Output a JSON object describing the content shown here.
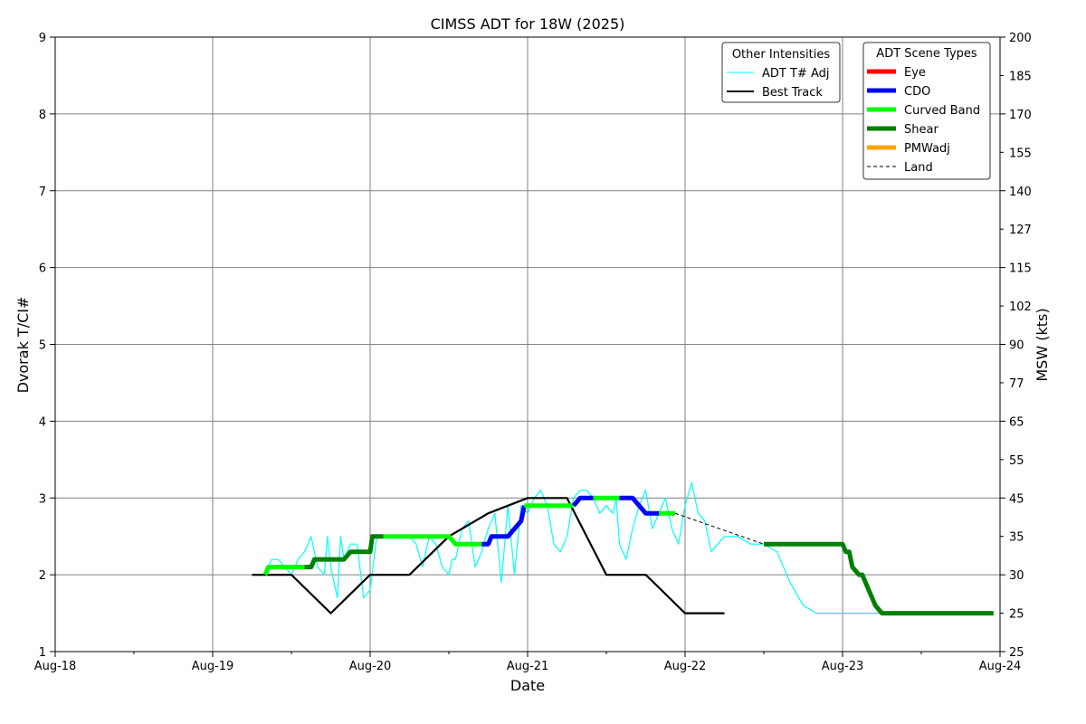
{
  "chart_data": {
    "type": "line",
    "title": "CIMSS ADT for 18W (2025)",
    "xlabel": "Date",
    "ylabel": "Dvorak T/CI#",
    "y2label": "MSW (kts)",
    "x_range": [
      "2025-08-18",
      "2025-08-24"
    ],
    "x_ticks": [
      "Aug-18",
      "Aug-19",
      "Aug-20",
      "Aug-21",
      "Aug-22",
      "Aug-23",
      "Aug-24"
    ],
    "ylim": [
      1,
      9
    ],
    "y_ticks": [
      "1",
      "2",
      "3",
      "4",
      "5",
      "6",
      "7",
      "8",
      "9"
    ],
    "y2_ticks": [
      "25",
      "30",
      "45",
      "65",
      "90",
      "115",
      "140",
      "170",
      "200"
    ],
    "y2_minor_ticks": [
      "25",
      "35",
      "55",
      "77",
      "102",
      "127",
      "155",
      "185"
    ],
    "grid": true,
    "legends": {
      "other": {
        "title": "Other Intensities",
        "placement": "top-right",
        "entries": [
          {
            "label": "ADT T# Adj",
            "color": "#00ffff",
            "style": "thin"
          },
          {
            "label": "Best Track",
            "color": "#000000",
            "style": "medium"
          }
        ]
      },
      "scene": {
        "title": "ADT Scene Types",
        "placement": "top-right",
        "entries": [
          {
            "label": "Eye",
            "color": "#ff0000",
            "style": "thick"
          },
          {
            "label": "CDO",
            "color": "#0000ff",
            "style": "thick"
          },
          {
            "label": "Curved Band",
            "color": "#00ff00",
            "style": "thick"
          },
          {
            "label": "Shear",
            "color": "#008000",
            "style": "thick"
          },
          {
            "label": "PMWadj",
            "color": "#ffa500",
            "style": "thick"
          },
          {
            "label": "Land",
            "color": "#000000",
            "style": "dashed"
          }
        ]
      }
    },
    "series": [
      {
        "name": "ADT T# Adj",
        "color": "#00ffff",
        "points": [
          [
            "2025-08-19 08:00",
            2.0
          ],
          [
            "2025-08-19 09:00",
            2.2
          ],
          [
            "2025-08-19 10:00",
            2.2
          ],
          [
            "2025-08-19 11:00",
            2.1
          ],
          [
            "2025-08-19 12:00",
            2.0
          ],
          [
            "2025-08-19 13:00",
            2.2
          ],
          [
            "2025-08-19 14:00",
            2.3
          ],
          [
            "2025-08-19 15:00",
            2.5
          ],
          [
            "2025-08-19 16:00",
            2.1
          ],
          [
            "2025-08-19 17:00",
            2.0
          ],
          [
            "2025-08-19 17:30",
            2.5
          ],
          [
            "2025-08-19 18:00",
            2.1
          ],
          [
            "2025-08-19 19:00",
            1.7
          ],
          [
            "2025-08-19 19:30",
            2.5
          ],
          [
            "2025-08-19 20:00",
            2.2
          ],
          [
            "2025-08-19 21:00",
            2.4
          ],
          [
            "2025-08-19 22:00",
            2.4
          ],
          [
            "2025-08-19 23:00",
            1.7
          ],
          [
            "2025-08-20 00:00",
            1.8
          ],
          [
            "2025-08-20 01:00",
            2.5
          ],
          [
            "2025-08-20 03:00",
            2.5
          ],
          [
            "2025-08-20 05:00",
            2.5
          ],
          [
            "2025-08-20 06:00",
            2.5
          ],
          [
            "2025-08-20 07:00",
            2.4
          ],
          [
            "2025-08-20 08:00",
            2.1
          ],
          [
            "2025-08-20 09:00",
            2.5
          ],
          [
            "2025-08-20 10:00",
            2.4
          ],
          [
            "2025-08-20 11:00",
            2.1
          ],
          [
            "2025-08-20 12:00",
            2.0
          ],
          [
            "2025-08-20 12:30",
            2.2
          ],
          [
            "2025-08-20 13:00",
            2.2
          ],
          [
            "2025-08-20 14:00",
            2.6
          ],
          [
            "2025-08-20 15:00",
            2.7
          ],
          [
            "2025-08-20 16:00",
            2.1
          ],
          [
            "2025-08-20 17:00",
            2.3
          ],
          [
            "2025-08-20 18:00",
            2.6
          ],
          [
            "2025-08-20 19:00",
            2.8
          ],
          [
            "2025-08-20 20:00",
            1.9
          ],
          [
            "2025-08-20 21:00",
            2.9
          ],
          [
            "2025-08-20 22:00",
            2.0
          ],
          [
            "2025-08-20 23:00",
            2.9
          ],
          [
            "2025-08-21 00:00",
            2.8
          ],
          [
            "2025-08-21 01:00",
            3.0
          ],
          [
            "2025-08-21 02:00",
            3.1
          ],
          [
            "2025-08-21 03:00",
            2.9
          ],
          [
            "2025-08-21 04:00",
            2.4
          ],
          [
            "2025-08-21 05:00",
            2.3
          ],
          [
            "2025-08-21 06:00",
            2.5
          ],
          [
            "2025-08-21 07:00",
            3.0
          ],
          [
            "2025-08-21 08:00",
            3.1
          ],
          [
            "2025-08-21 09:00",
            3.1
          ],
          [
            "2025-08-21 10:00",
            3.0
          ],
          [
            "2025-08-21 11:00",
            2.8
          ],
          [
            "2025-08-21 12:00",
            2.9
          ],
          [
            "2025-08-21 13:00",
            2.8
          ],
          [
            "2025-08-21 13:30",
            3.0
          ],
          [
            "2025-08-21 14:00",
            2.4
          ],
          [
            "2025-08-21 15:00",
            2.2
          ],
          [
            "2025-08-21 16:00",
            2.6
          ],
          [
            "2025-08-21 17:00",
            2.9
          ],
          [
            "2025-08-21 18:00",
            3.1
          ],
          [
            "2025-08-21 19:00",
            2.6
          ],
          [
            "2025-08-21 20:00",
            2.8
          ],
          [
            "2025-08-21 21:00",
            3.0
          ],
          [
            "2025-08-21 22:00",
            2.6
          ],
          [
            "2025-08-21 23:00",
            2.4
          ],
          [
            "2025-08-22 00:00",
            2.9
          ],
          [
            "2025-08-22 01:00",
            3.2
          ],
          [
            "2025-08-22 02:00",
            2.8
          ],
          [
            "2025-08-22 03:00",
            2.7
          ],
          [
            "2025-08-22 04:00",
            2.3
          ],
          [
            "2025-08-22 06:00",
            2.5
          ],
          [
            "2025-08-22 08:00",
            2.5
          ],
          [
            "2025-08-22 10:00",
            2.4
          ],
          [
            "2025-08-22 12:00",
            2.4
          ],
          [
            "2025-08-22 14:00",
            2.3
          ],
          [
            "2025-08-22 16:00",
            1.9
          ],
          [
            "2025-08-22 18:00",
            1.6
          ],
          [
            "2025-08-22 20:00",
            1.5
          ],
          [
            "2025-08-22 22:00",
            1.5
          ],
          [
            "2025-08-23 00:00",
            1.5
          ],
          [
            "2025-08-23 02:00",
            1.5
          ],
          [
            "2025-08-23 04:00",
            1.5
          ],
          [
            "2025-08-23 06:00",
            1.5
          ]
        ]
      },
      {
        "name": "Best Track",
        "color": "#000000",
        "points": [
          [
            "2025-08-19 06:00",
            2.0
          ],
          [
            "2025-08-19 12:00",
            2.0
          ],
          [
            "2025-08-19 18:00",
            1.5
          ],
          [
            "2025-08-20 00:00",
            2.0
          ],
          [
            "2025-08-20 06:00",
            2.0
          ],
          [
            "2025-08-20 12:00",
            2.5
          ],
          [
            "2025-08-20 18:00",
            2.8
          ],
          [
            "2025-08-21 00:00",
            3.0
          ],
          [
            "2025-08-21 06:00",
            3.0
          ],
          [
            "2025-08-21 12:00",
            2.0
          ],
          [
            "2025-08-21 18:00",
            2.0
          ],
          [
            "2025-08-22 00:00",
            1.5
          ],
          [
            "2025-08-22 06:00",
            1.5
          ]
        ]
      }
    ],
    "scene_segments": [
      {
        "scene": "Curved Band",
        "color": "#00ff00",
        "points": [
          [
            "2025-08-19 08:00",
            2.0
          ],
          [
            "2025-08-19 08:30",
            2.1
          ],
          [
            "2025-08-19 14:00",
            2.1
          ]
        ]
      },
      {
        "scene": "Shear",
        "color": "#008000",
        "points": [
          [
            "2025-08-19 14:00",
            2.1
          ],
          [
            "2025-08-19 15:00",
            2.1
          ],
          [
            "2025-08-19 15:30",
            2.2
          ],
          [
            "2025-08-19 19:00",
            2.2
          ],
          [
            "2025-08-19 20:00",
            2.2
          ],
          [
            "2025-08-19 21:00",
            2.3
          ],
          [
            "2025-08-20 00:00",
            2.3
          ],
          [
            "2025-08-20 00:20",
            2.5
          ],
          [
            "2025-08-20 02:00",
            2.5
          ]
        ]
      },
      {
        "scene": "Curved Band",
        "color": "#00ff00",
        "points": [
          [
            "2025-08-20 02:00",
            2.5
          ],
          [
            "2025-08-20 07:00",
            2.5
          ],
          [
            "2025-08-20 07:30",
            2.5
          ],
          [
            "2025-08-20 08:00",
            2.5
          ],
          [
            "2025-08-20 12:00",
            2.5
          ],
          [
            "2025-08-20 13:00",
            2.4
          ],
          [
            "2025-08-20 17:00",
            2.4
          ]
        ]
      },
      {
        "scene": "CDO",
        "color": "#0000ff",
        "points": [
          [
            "2025-08-20 17:00",
            2.4
          ],
          [
            "2025-08-20 18:00",
            2.4
          ],
          [
            "2025-08-20 18:30",
            2.5
          ],
          [
            "2025-08-20 21:00",
            2.5
          ],
          [
            "2025-08-20 22:00",
            2.6
          ],
          [
            "2025-08-20 23:00",
            2.7
          ],
          [
            "2025-08-20 23:30",
            2.9
          ]
        ]
      },
      {
        "scene": "Curved Band",
        "color": "#00ff00",
        "points": [
          [
            "2025-08-20 23:30",
            2.9
          ],
          [
            "2025-08-21 06:00",
            2.9
          ],
          [
            "2025-08-21 07:00",
            2.9
          ]
        ]
      },
      {
        "scene": "CDO",
        "color": "#0000ff",
        "points": [
          [
            "2025-08-21 07:00",
            2.9
          ],
          [
            "2025-08-21 08:00",
            3.0
          ],
          [
            "2025-08-21 10:00",
            3.0
          ]
        ]
      },
      {
        "scene": "Curved Band",
        "color": "#00ff00",
        "points": [
          [
            "2025-08-21 10:00",
            3.0
          ],
          [
            "2025-08-21 12:00",
            3.0
          ],
          [
            "2025-08-21 14:00",
            3.0
          ]
        ]
      },
      {
        "scene": "CDO",
        "color": "#0000ff",
        "points": [
          [
            "2025-08-21 14:00",
            3.0
          ],
          [
            "2025-08-21 16:00",
            3.0
          ],
          [
            "2025-08-21 18:00",
            2.8
          ],
          [
            "2025-08-21 20:00",
            2.8
          ]
        ]
      },
      {
        "scene": "Curved Band",
        "color": "#00ff00",
        "points": [
          [
            "2025-08-21 20:00",
            2.8
          ],
          [
            "2025-08-21 22:30",
            2.8
          ]
        ]
      }
    ],
    "land_segment": {
      "scene": "Land",
      "color": "#000000",
      "points": [
        [
          "2025-08-21 22:30",
          2.8
        ],
        [
          "2025-08-22 12:00",
          2.4
        ]
      ]
    },
    "shear_after_land": {
      "scene": "Shear",
      "color": "#008000",
      "points": [
        [
          "2025-08-22 12:00",
          2.4
        ],
        [
          "2025-08-22 16:00",
          2.4
        ],
        [
          "2025-08-23 00:00",
          2.4
        ],
        [
          "2025-08-23 00:30",
          2.3
        ],
        [
          "2025-08-23 01:00",
          2.3
        ],
        [
          "2025-08-23 01:30",
          2.1
        ],
        [
          "2025-08-23 02:30",
          2.0
        ],
        [
          "2025-08-23 03:00",
          2.0
        ],
        [
          "2025-08-23 04:00",
          1.8
        ],
        [
          "2025-08-23 05:00",
          1.6
        ],
        [
          "2025-08-23 06:00",
          1.5
        ],
        [
          "2025-08-23 23:00",
          1.5
        ]
      ]
    }
  }
}
